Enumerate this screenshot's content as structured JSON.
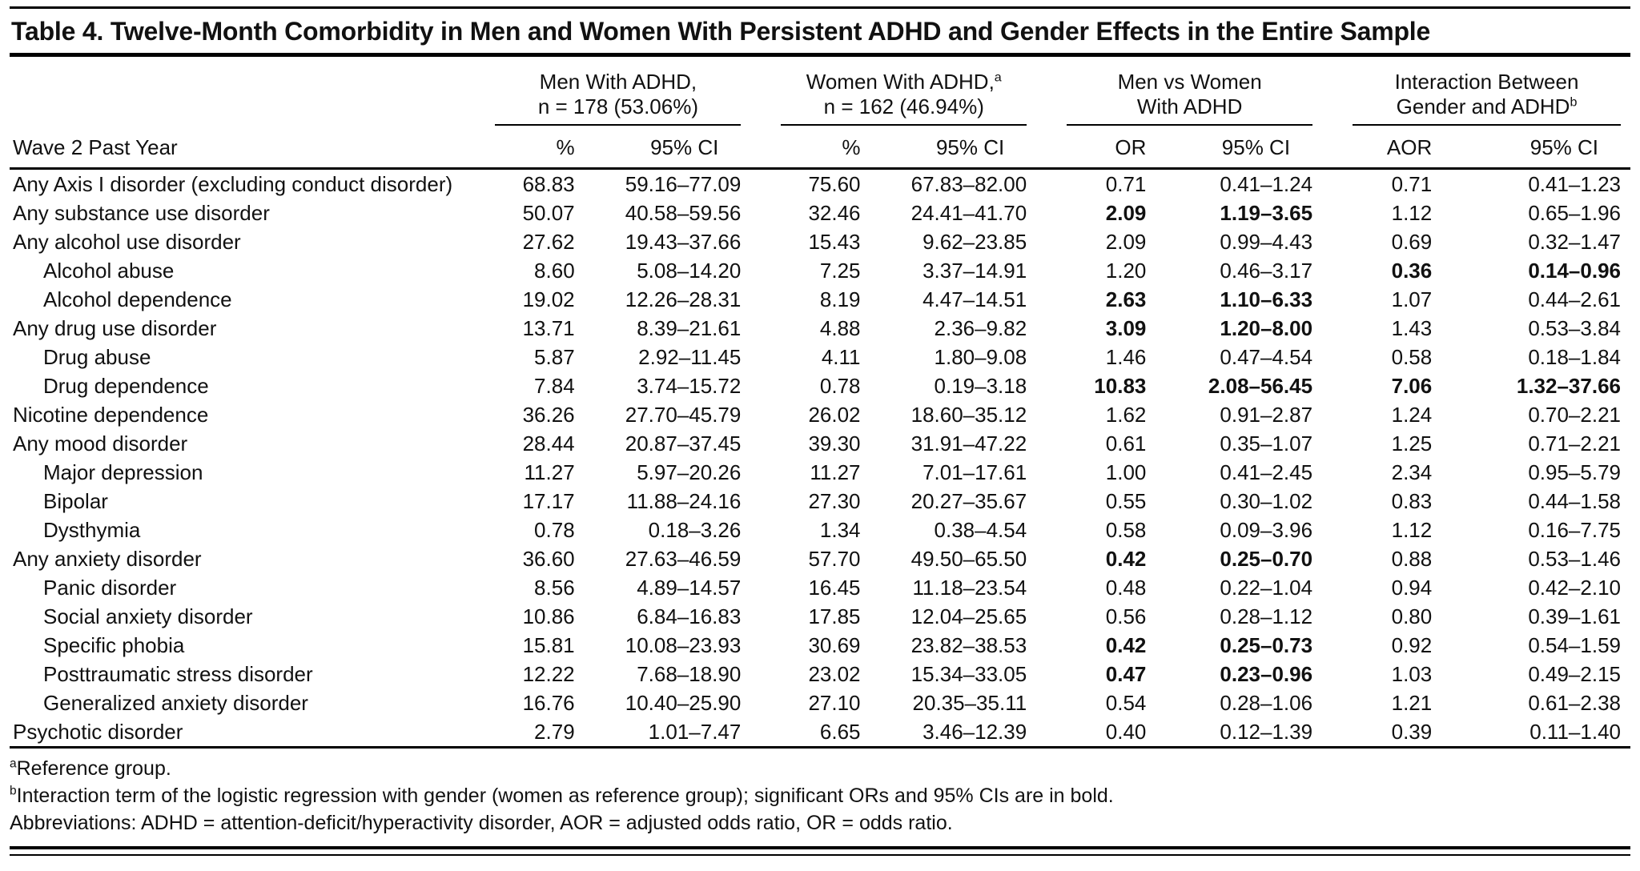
{
  "table": {
    "title": "Table 4. Twelve-Month Comorbidity in Men and Women With Persistent ADHD and Gender Effects in the Entire Sample",
    "stub_header": "Wave 2 Past Year",
    "col_groups": [
      {
        "line1": "Men With ADHD,",
        "line1_sup": "",
        "line2": "n = 178 (53.06%)",
        "line2_sup": "",
        "cols": [
          "%",
          "95% CI"
        ]
      },
      {
        "line1": "Women With ADHD,",
        "line1_sup": "a",
        "line2": "n = 162 (46.94%)",
        "line2_sup": "",
        "cols": [
          "%",
          "95% CI"
        ]
      },
      {
        "line1": "Men vs Women",
        "line1_sup": "",
        "line2": "With ADHD",
        "line2_sup": "",
        "cols": [
          "OR",
          "95% CI"
        ]
      },
      {
        "line1": "Interaction Between",
        "line1_sup": "",
        "line2": "Gender and ADHD",
        "line2_sup": "b",
        "cols": [
          "AOR",
          "95% CI"
        ]
      }
    ],
    "rows": [
      {
        "label": "Any Axis I disorder (excluding conduct disorder)",
        "indent": false,
        "cells": [
          "68.83",
          "59.16–77.09",
          "75.60",
          "67.83–82.00",
          "0.71",
          "0.41–1.24",
          "0.71",
          "0.41–1.23"
        ],
        "bold": []
      },
      {
        "label": "Any substance use disorder",
        "indent": false,
        "cells": [
          "50.07",
          "40.58–59.56",
          "32.46",
          "24.41–41.70",
          "2.09",
          "1.19–3.65",
          "1.12",
          "0.65–1.96"
        ],
        "bold": [
          4,
          5
        ]
      },
      {
        "label": "Any alcohol use disorder",
        "indent": false,
        "cells": [
          "27.62",
          "19.43–37.66",
          "15.43",
          "9.62–23.85",
          "2.09",
          "0.99–4.43",
          "0.69",
          "0.32–1.47"
        ],
        "bold": []
      },
      {
        "label": "Alcohol abuse",
        "indent": true,
        "cells": [
          "8.60",
          "5.08–14.20",
          "7.25",
          "3.37–14.91",
          "1.20",
          "0.46–3.17",
          "0.36",
          "0.14–0.96"
        ],
        "bold": [
          6,
          7
        ]
      },
      {
        "label": "Alcohol dependence",
        "indent": true,
        "cells": [
          "19.02",
          "12.26–28.31",
          "8.19",
          "4.47–14.51",
          "2.63",
          "1.10–6.33",
          "1.07",
          "0.44–2.61"
        ],
        "bold": [
          4,
          5
        ]
      },
      {
        "label": "Any drug use disorder",
        "indent": false,
        "cells": [
          "13.71",
          "8.39–21.61",
          "4.88",
          "2.36–9.82",
          "3.09",
          "1.20–8.00",
          "1.43",
          "0.53–3.84"
        ],
        "bold": [
          4,
          5
        ]
      },
      {
        "label": "Drug abuse",
        "indent": true,
        "cells": [
          "5.87",
          "2.92–11.45",
          "4.11",
          "1.80–9.08",
          "1.46",
          "0.47–4.54",
          "0.58",
          "0.18–1.84"
        ],
        "bold": []
      },
      {
        "label": "Drug dependence",
        "indent": true,
        "cells": [
          "7.84",
          "3.74–15.72",
          "0.78",
          "0.19–3.18",
          "10.83",
          "2.08–56.45",
          "7.06",
          "1.32–37.66"
        ],
        "bold": [
          4,
          5,
          6,
          7
        ]
      },
      {
        "label": "Nicotine dependence",
        "indent": false,
        "cells": [
          "36.26",
          "27.70–45.79",
          "26.02",
          "18.60–35.12",
          "1.62",
          "0.91–2.87",
          "1.24",
          "0.70–2.21"
        ],
        "bold": []
      },
      {
        "label": "Any mood disorder",
        "indent": false,
        "cells": [
          "28.44",
          "20.87–37.45",
          "39.30",
          "31.91–47.22",
          "0.61",
          "0.35–1.07",
          "1.25",
          "0.71–2.21"
        ],
        "bold": []
      },
      {
        "label": "Major depression",
        "indent": true,
        "cells": [
          "11.27",
          "5.97–20.26",
          "11.27",
          "7.01–17.61",
          "1.00",
          "0.41–2.45",
          "2.34",
          "0.95–5.79"
        ],
        "bold": []
      },
      {
        "label": "Bipolar",
        "indent": true,
        "cells": [
          "17.17",
          "11.88–24.16",
          "27.30",
          "20.27–35.67",
          "0.55",
          "0.30–1.02",
          "0.83",
          "0.44–1.58"
        ],
        "bold": []
      },
      {
        "label": "Dysthymia",
        "indent": true,
        "cells": [
          "0.78",
          "0.18–3.26",
          "1.34",
          "0.38–4.54",
          "0.58",
          "0.09–3.96",
          "1.12",
          "0.16–7.75"
        ],
        "bold": []
      },
      {
        "label": "Any anxiety disorder",
        "indent": false,
        "cells": [
          "36.60",
          "27.63–46.59",
          "57.70",
          "49.50–65.50",
          "0.42",
          "0.25–0.70",
          "0.88",
          "0.53–1.46"
        ],
        "bold": [
          4,
          5
        ]
      },
      {
        "label": "Panic disorder",
        "indent": true,
        "cells": [
          "8.56",
          "4.89–14.57",
          "16.45",
          "11.18–23.54",
          "0.48",
          "0.22–1.04",
          "0.94",
          "0.42–2.10"
        ],
        "bold": []
      },
      {
        "label": "Social anxiety disorder",
        "indent": true,
        "cells": [
          "10.86",
          "6.84–16.83",
          "17.85",
          "12.04–25.65",
          "0.56",
          "0.28–1.12",
          "0.80",
          "0.39–1.61"
        ],
        "bold": []
      },
      {
        "label": "Specific phobia",
        "indent": true,
        "cells": [
          "15.81",
          "10.08–23.93",
          "30.69",
          "23.82–38.53",
          "0.42",
          "0.25–0.73",
          "0.92",
          "0.54–1.59"
        ],
        "bold": [
          4,
          5
        ]
      },
      {
        "label": "Posttraumatic stress disorder",
        "indent": true,
        "cells": [
          "12.22",
          "7.68–18.90",
          "23.02",
          "15.34–33.05",
          "0.47",
          "0.23–0.96",
          "1.03",
          "0.49–2.15"
        ],
        "bold": [
          4,
          5
        ]
      },
      {
        "label": "Generalized anxiety disorder",
        "indent": true,
        "cells": [
          "16.76",
          "10.40–25.90",
          "27.10",
          "20.35–35.11",
          "0.54",
          "0.28–1.06",
          "1.21",
          "0.61–2.38"
        ],
        "bold": []
      },
      {
        "label": "Psychotic disorder",
        "indent": false,
        "cells": [
          "2.79",
          "1.01–7.47",
          "6.65",
          "3.46–12.39",
          "0.40",
          "0.12–1.39",
          "0.39",
          "0.11–1.40"
        ],
        "bold": []
      }
    ],
    "footnotes": [
      {
        "sup": "a",
        "text": "Reference group."
      },
      {
        "sup": "b",
        "text": "Interaction term of the logistic regression with gender (women as reference group); significant ORs and 95% CIs are in bold."
      },
      {
        "sup": "",
        "text": "Abbreviations: ADHD = attention-deficit/hyperactivity disorder, AOR = adjusted odds ratio, OR = odds ratio."
      }
    ]
  }
}
